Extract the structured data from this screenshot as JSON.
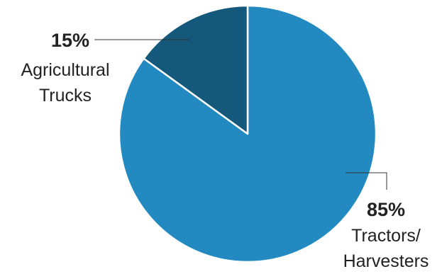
{
  "chart_data": {
    "type": "pie",
    "title": "",
    "slices": [
      {
        "label_lines": [
          "Tractors/",
          "Harvesters"
        ],
        "value": 85,
        "value_label": "85%",
        "color": "#228ac0"
      },
      {
        "label_lines": [
          "Agricultural",
          "Trucks"
        ],
        "value": 15,
        "value_label": "15%",
        "color": "#14597c"
      }
    ],
    "start_angle_deg": 0,
    "direction": "clockwise",
    "slice_border_color": "#ffffff"
  }
}
